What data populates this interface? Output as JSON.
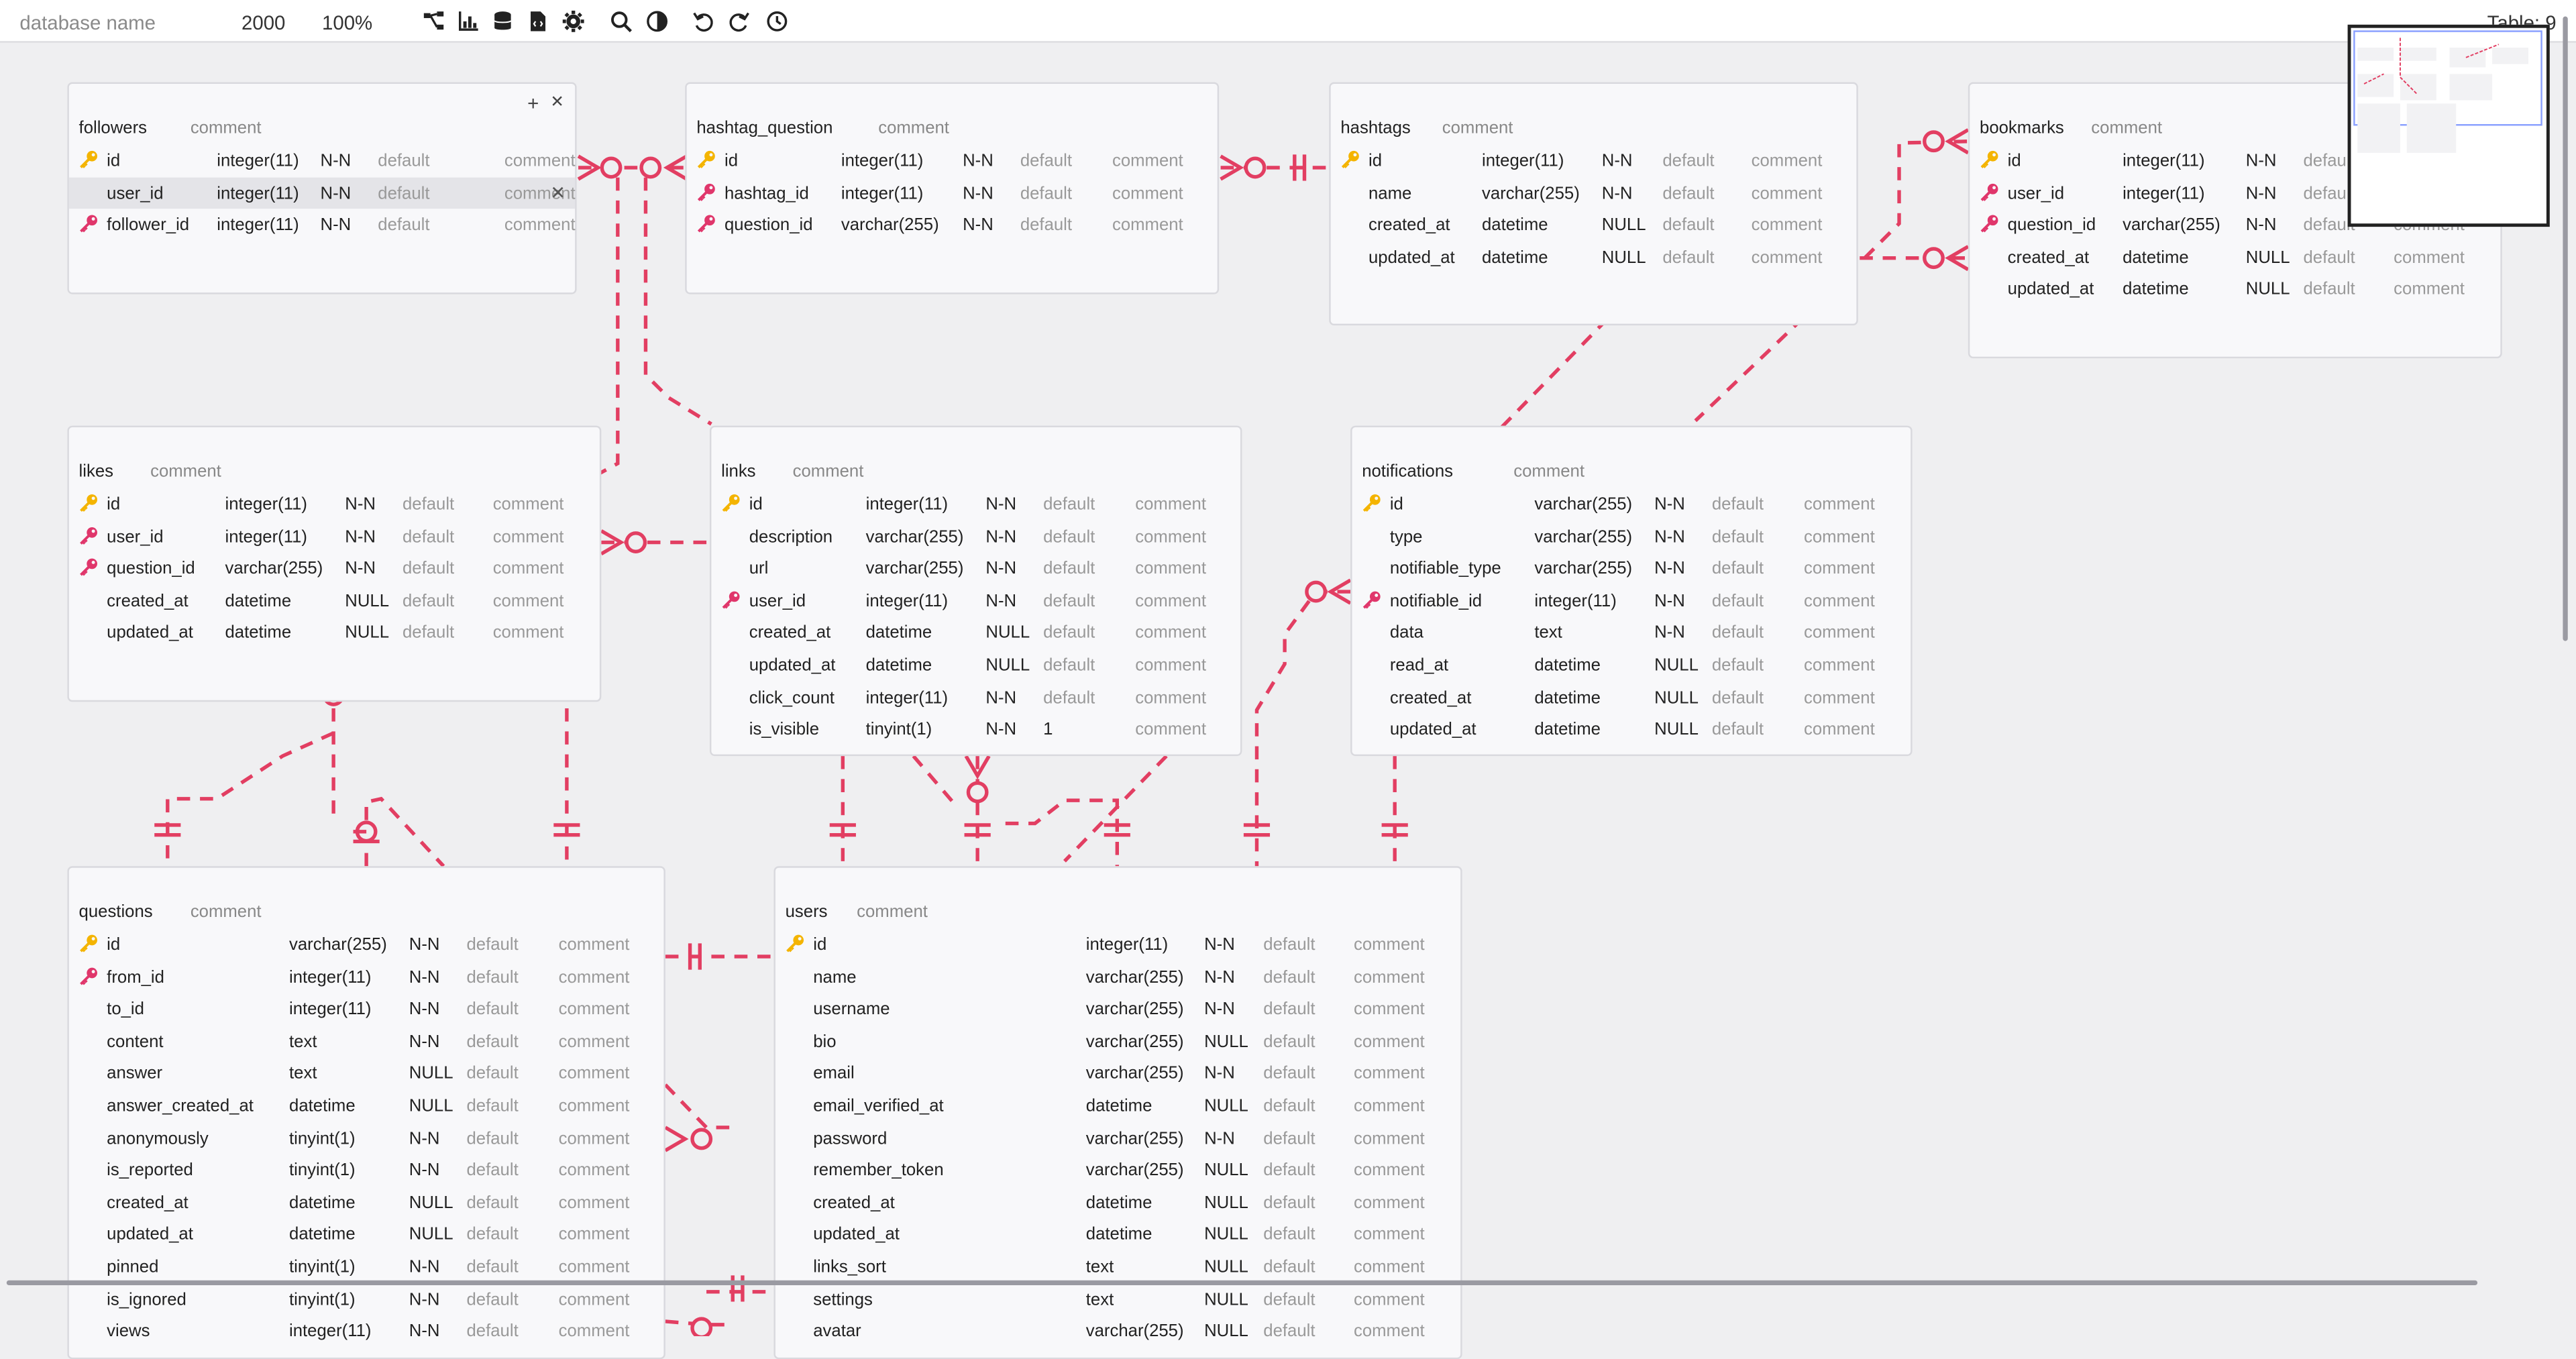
{
  "toolbar": {
    "database_name_placeholder": "database name",
    "canvas_size": "2000",
    "zoom": "100%",
    "table_count": "Table: 9",
    "icons": [
      "auto-layout-icon",
      "chart-icon",
      "database-icon",
      "code-file-icon",
      "gear-icon",
      "search-icon",
      "contrast-icon",
      "undo-icon",
      "redo-icon",
      "history-icon"
    ]
  },
  "colors": {
    "relation": "#e23e62",
    "primary_key": "#f4b400",
    "foreign_key": "#e0366b"
  },
  "tables": [
    {
      "name": "followers",
      "comment": "comment",
      "columns": [
        {
          "name": "id",
          "type": "integer(11)",
          "nullable": "N-N",
          "default": "default",
          "comment": "comment",
          "key": "pk"
        },
        {
          "name": "user_id",
          "type": "integer(11)",
          "nullable": "N-N",
          "default": "default",
          "comment": "comment",
          "key": ""
        },
        {
          "name": "follower_id",
          "type": "integer(11)",
          "nullable": "N-N",
          "default": "default",
          "comment": "comment",
          "key": "fk"
        }
      ]
    },
    {
      "name": "hashtag_question",
      "comment": "comment",
      "columns": [
        {
          "name": "id",
          "type": "integer(11)",
          "nullable": "N-N",
          "default": "default",
          "comment": "comment",
          "key": "pk"
        },
        {
          "name": "hashtag_id",
          "type": "integer(11)",
          "nullable": "N-N",
          "default": "default",
          "comment": "comment",
          "key": "fk"
        },
        {
          "name": "question_id",
          "type": "varchar(255)",
          "nullable": "N-N",
          "default": "default",
          "comment": "comment",
          "key": "fk"
        }
      ]
    },
    {
      "name": "hashtags",
      "comment": "comment",
      "columns": [
        {
          "name": "id",
          "type": "integer(11)",
          "nullable": "N-N",
          "default": "default",
          "comment": "comment",
          "key": "pk"
        },
        {
          "name": "name",
          "type": "varchar(255)",
          "nullable": "N-N",
          "default": "default",
          "comment": "comment",
          "key": ""
        },
        {
          "name": "created_at",
          "type": "datetime",
          "nullable": "NULL",
          "default": "default",
          "comment": "comment",
          "key": ""
        },
        {
          "name": "updated_at",
          "type": "datetime",
          "nullable": "NULL",
          "default": "default",
          "comment": "comment",
          "key": ""
        }
      ]
    },
    {
      "name": "bookmarks",
      "comment": "comment",
      "columns": [
        {
          "name": "id",
          "type": "integer(11)",
          "nullable": "N-N",
          "default": "default",
          "comment": "comment",
          "key": "pk"
        },
        {
          "name": "user_id",
          "type": "integer(11)",
          "nullable": "N-N",
          "default": "default",
          "comment": "comment",
          "key": "fk"
        },
        {
          "name": "question_id",
          "type": "varchar(255)",
          "nullable": "N-N",
          "default": "default",
          "comment": "comment",
          "key": "fk"
        },
        {
          "name": "created_at",
          "type": "datetime",
          "nullable": "NULL",
          "default": "default",
          "comment": "comment",
          "key": ""
        },
        {
          "name": "updated_at",
          "type": "datetime",
          "nullable": "NULL",
          "default": "default",
          "comment": "comment",
          "key": ""
        }
      ]
    },
    {
      "name": "likes",
      "comment": "comment",
      "columns": [
        {
          "name": "id",
          "type": "integer(11)",
          "nullable": "N-N",
          "default": "default",
          "comment": "comment",
          "key": "pk"
        },
        {
          "name": "user_id",
          "type": "integer(11)",
          "nullable": "N-N",
          "default": "default",
          "comment": "comment",
          "key": "fk"
        },
        {
          "name": "question_id",
          "type": "varchar(255)",
          "nullable": "N-N",
          "default": "default",
          "comment": "comment",
          "key": "fk"
        },
        {
          "name": "created_at",
          "type": "datetime",
          "nullable": "NULL",
          "default": "default",
          "comment": "comment",
          "key": ""
        },
        {
          "name": "updated_at",
          "type": "datetime",
          "nullable": "NULL",
          "default": "default",
          "comment": "comment",
          "key": ""
        }
      ]
    },
    {
      "name": "links",
      "comment": "comment",
      "columns": [
        {
          "name": "id",
          "type": "integer(11)",
          "nullable": "N-N",
          "default": "default",
          "comment": "comment",
          "key": "pk"
        },
        {
          "name": "description",
          "type": "varchar(255)",
          "nullable": "N-N",
          "default": "default",
          "comment": "comment",
          "key": ""
        },
        {
          "name": "url",
          "type": "varchar(255)",
          "nullable": "N-N",
          "default": "default",
          "comment": "comment",
          "key": ""
        },
        {
          "name": "user_id",
          "type": "integer(11)",
          "nullable": "N-N",
          "default": "default",
          "comment": "comment",
          "key": "fk"
        },
        {
          "name": "created_at",
          "type": "datetime",
          "nullable": "NULL",
          "default": "default",
          "comment": "comment",
          "key": ""
        },
        {
          "name": "updated_at",
          "type": "datetime",
          "nullable": "NULL",
          "default": "default",
          "comment": "comment",
          "key": ""
        },
        {
          "name": "click_count",
          "type": "integer(11)",
          "nullable": "N-N",
          "default": "default",
          "comment": "comment",
          "key": ""
        },
        {
          "name": "is_visible",
          "type": "tinyint(1)",
          "nullable": "N-N",
          "default": "1",
          "comment": "comment",
          "key": ""
        }
      ]
    },
    {
      "name": "notifications",
      "comment": "comment",
      "columns": [
        {
          "name": "id",
          "type": "varchar(255)",
          "nullable": "N-N",
          "default": "default",
          "comment": "comment",
          "key": "pk"
        },
        {
          "name": "type",
          "type": "varchar(255)",
          "nullable": "N-N",
          "default": "default",
          "comment": "comment",
          "key": ""
        },
        {
          "name": "notifiable_type",
          "type": "varchar(255)",
          "nullable": "N-N",
          "default": "default",
          "comment": "comment",
          "key": ""
        },
        {
          "name": "notifiable_id",
          "type": "integer(11)",
          "nullable": "N-N",
          "default": "default",
          "comment": "comment",
          "key": "fk"
        },
        {
          "name": "data",
          "type": "text",
          "nullable": "N-N",
          "default": "default",
          "comment": "comment",
          "key": ""
        },
        {
          "name": "read_at",
          "type": "datetime",
          "nullable": "NULL",
          "default": "default",
          "comment": "comment",
          "key": ""
        },
        {
          "name": "created_at",
          "type": "datetime",
          "nullable": "NULL",
          "default": "default",
          "comment": "comment",
          "key": ""
        },
        {
          "name": "updated_at",
          "type": "datetime",
          "nullable": "NULL",
          "default": "default",
          "comment": "comment",
          "key": ""
        }
      ]
    },
    {
      "name": "questions",
      "comment": "comment",
      "columns": [
        {
          "name": "id",
          "type": "varchar(255)",
          "nullable": "N-N",
          "default": "default",
          "comment": "comment",
          "key": "pk"
        },
        {
          "name": "from_id",
          "type": "integer(11)",
          "nullable": "N-N",
          "default": "default",
          "comment": "comment",
          "key": "fk"
        },
        {
          "name": "to_id",
          "type": "integer(11)",
          "nullable": "N-N",
          "default": "default",
          "comment": "comment",
          "key": ""
        },
        {
          "name": "content",
          "type": "text",
          "nullable": "N-N",
          "default": "default",
          "comment": "comment",
          "key": ""
        },
        {
          "name": "answer",
          "type": "text",
          "nullable": "NULL",
          "default": "default",
          "comment": "comment",
          "key": ""
        },
        {
          "name": "answer_created_at",
          "type": "datetime",
          "nullable": "NULL",
          "default": "default",
          "comment": "comment",
          "key": ""
        },
        {
          "name": "anonymously",
          "type": "tinyint(1)",
          "nullable": "N-N",
          "default": "default",
          "comment": "comment",
          "key": ""
        },
        {
          "name": "is_reported",
          "type": "tinyint(1)",
          "nullable": "N-N",
          "default": "default",
          "comment": "comment",
          "key": ""
        },
        {
          "name": "created_at",
          "type": "datetime",
          "nullable": "NULL",
          "default": "default",
          "comment": "comment",
          "key": ""
        },
        {
          "name": "updated_at",
          "type": "datetime",
          "nullable": "NULL",
          "default": "default",
          "comment": "comment",
          "key": ""
        },
        {
          "name": "pinned",
          "type": "tinyint(1)",
          "nullable": "N-N",
          "default": "default",
          "comment": "comment",
          "key": ""
        },
        {
          "name": "is_ignored",
          "type": "tinyint(1)",
          "nullable": "N-N",
          "default": "default",
          "comment": "comment",
          "key": ""
        },
        {
          "name": "views",
          "type": "integer(11)",
          "nullable": "N-N",
          "default": "default",
          "comment": "comment",
          "key": ""
        }
      ]
    },
    {
      "name": "users",
      "comment": "comment",
      "columns": [
        {
          "name": "id",
          "type": "integer(11)",
          "nullable": "N-N",
          "default": "default",
          "comment": "comment",
          "key": "pk"
        },
        {
          "name": "name",
          "type": "varchar(255)",
          "nullable": "N-N",
          "default": "default",
          "comment": "comment",
          "key": ""
        },
        {
          "name": "username",
          "type": "varchar(255)",
          "nullable": "N-N",
          "default": "default",
          "comment": "comment",
          "key": ""
        },
        {
          "name": "bio",
          "type": "varchar(255)",
          "nullable": "NULL",
          "default": "default",
          "comment": "comment",
          "key": ""
        },
        {
          "name": "email",
          "type": "varchar(255)",
          "nullable": "N-N",
          "default": "default",
          "comment": "comment",
          "key": ""
        },
        {
          "name": "email_verified_at",
          "type": "datetime",
          "nullable": "NULL",
          "default": "default",
          "comment": "comment",
          "key": ""
        },
        {
          "name": "password",
          "type": "varchar(255)",
          "nullable": "N-N",
          "default": "default",
          "comment": "comment",
          "key": ""
        },
        {
          "name": "remember_token",
          "type": "varchar(255)",
          "nullable": "NULL",
          "default": "default",
          "comment": "comment",
          "key": ""
        },
        {
          "name": "created_at",
          "type": "datetime",
          "nullable": "NULL",
          "default": "default",
          "comment": "comment",
          "key": ""
        },
        {
          "name": "updated_at",
          "type": "datetime",
          "nullable": "NULL",
          "default": "default",
          "comment": "comment",
          "key": ""
        },
        {
          "name": "links_sort",
          "type": "text",
          "nullable": "NULL",
          "default": "default",
          "comment": "comment",
          "key": ""
        },
        {
          "name": "settings",
          "type": "text",
          "nullable": "NULL",
          "default": "default",
          "comment": "comment",
          "key": ""
        },
        {
          "name": "avatar",
          "type": "varchar(255)",
          "nullable": "NULL",
          "default": "default",
          "comment": "comment",
          "key": ""
        }
      ]
    }
  ]
}
